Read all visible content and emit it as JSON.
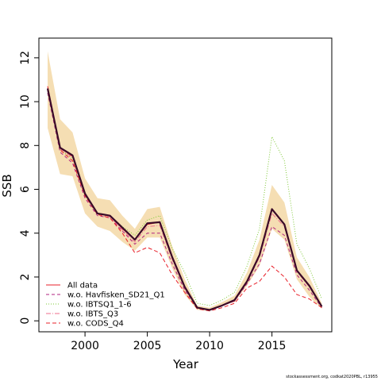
{
  "chart_data": {
    "type": "line",
    "xlabel": "Year",
    "ylabel": "SSB",
    "xlim": [
      1996.3,
      2019.8
    ],
    "ylim": [
      -0.5,
      12.9
    ],
    "xticks": [
      2000,
      2005,
      2010,
      2015
    ],
    "yticks": [
      0,
      2,
      4,
      6,
      8,
      10,
      12
    ],
    "legend_position": "bottom-left",
    "grid": false,
    "x": [
      1997,
      1998,
      1999,
      2000,
      2001,
      2002,
      2003,
      2004,
      2005,
      2006,
      2007,
      2008,
      2009,
      2010,
      2011,
      2012,
      2013,
      2014,
      2015,
      2016,
      2017,
      2018,
      2019
    ],
    "band": {
      "color": "#f5deb3",
      "lower": [
        8.8,
        6.7,
        6.6,
        4.9,
        4.3,
        4.1,
        3.6,
        3.2,
        3.8,
        3.8,
        2.4,
        1.2,
        0.5,
        0.45,
        0.75,
        0.85,
        1.6,
        2.5,
        4.2,
        3.7,
        1.9,
        1.1,
        0.55
      ],
      "upper": [
        12.3,
        9.2,
        8.6,
        6.5,
        5.6,
        5.5,
        4.8,
        4.2,
        5.1,
        5.2,
        3.4,
        1.9,
        0.7,
        0.6,
        0.85,
        1.15,
        2.2,
        3.7,
        6.2,
        5.4,
        2.9,
        2.0,
        0.8
      ]
    },
    "series": [
      {
        "name": "All data",
        "color": "#e8202a",
        "dash": "none",
        "width": 1,
        "values": [
          10.7,
          7.9,
          7.5,
          5.8,
          4.9,
          4.8,
          4.2,
          3.7,
          4.4,
          4.5,
          2.9,
          1.5,
          0.6,
          0.5,
          0.7,
          0.9,
          1.8,
          3.0,
          5.1,
          4.4,
          2.3,
          1.6,
          0.65
        ]
      },
      {
        "name": "w.o. Havfisken_SD21_Q1",
        "color": "#b2237f",
        "dash": "4,3",
        "width": 1,
        "values": [
          10.4,
          7.7,
          7.2,
          5.6,
          4.8,
          4.7,
          4.1,
          3.5,
          4.0,
          4.0,
          2.6,
          1.4,
          0.6,
          0.5,
          0.7,
          0.9,
          1.7,
          2.6,
          4.3,
          3.9,
          2.1,
          1.4,
          0.6
        ]
      },
      {
        "name": "w.o. IBTSQ1_1-6",
        "color": "#7ec936",
        "dash": "1,2",
        "width": 1,
        "values": [
          10.5,
          7.8,
          7.4,
          5.7,
          4.9,
          4.8,
          4.3,
          3.9,
          4.6,
          4.8,
          3.3,
          2.2,
          0.8,
          0.7,
          0.95,
          1.3,
          2.5,
          4.2,
          8.4,
          7.3,
          3.5,
          2.4,
          1.0
        ]
      },
      {
        "name": "w.o. IBTS_Q3",
        "color": "#ef6c8c",
        "dash": "6,2,1,2",
        "width": 1,
        "values": [
          10.6,
          7.85,
          7.45,
          5.75,
          4.9,
          4.75,
          4.15,
          3.6,
          4.3,
          4.35,
          2.8,
          1.5,
          0.6,
          0.5,
          0.7,
          0.9,
          1.75,
          2.9,
          4.9,
          4.3,
          2.25,
          1.55,
          0.65
        ]
      },
      {
        "name": "w.o. CODS_Q4",
        "color": "#e8202a",
        "dash": "5,3",
        "width": 1,
        "values": [
          10.6,
          7.8,
          7.3,
          5.7,
          4.85,
          4.7,
          4.0,
          3.1,
          3.35,
          3.1,
          2.1,
          1.3,
          0.55,
          0.45,
          0.6,
          0.8,
          1.5,
          1.8,
          2.5,
          2.0,
          1.2,
          1.0,
          0.6
        ]
      }
    ],
    "main_line": {
      "color": "#3a0a28",
      "width": 2.2,
      "values": [
        10.6,
        7.9,
        7.55,
        5.8,
        4.9,
        4.8,
        4.25,
        3.7,
        4.45,
        4.5,
        2.9,
        1.55,
        0.6,
        0.5,
        0.7,
        0.95,
        1.8,
        3.0,
        5.1,
        4.4,
        2.3,
        1.6,
        0.65
      ]
    }
  },
  "footer": "stockassessment.org, codkat2020PBL, r13955"
}
